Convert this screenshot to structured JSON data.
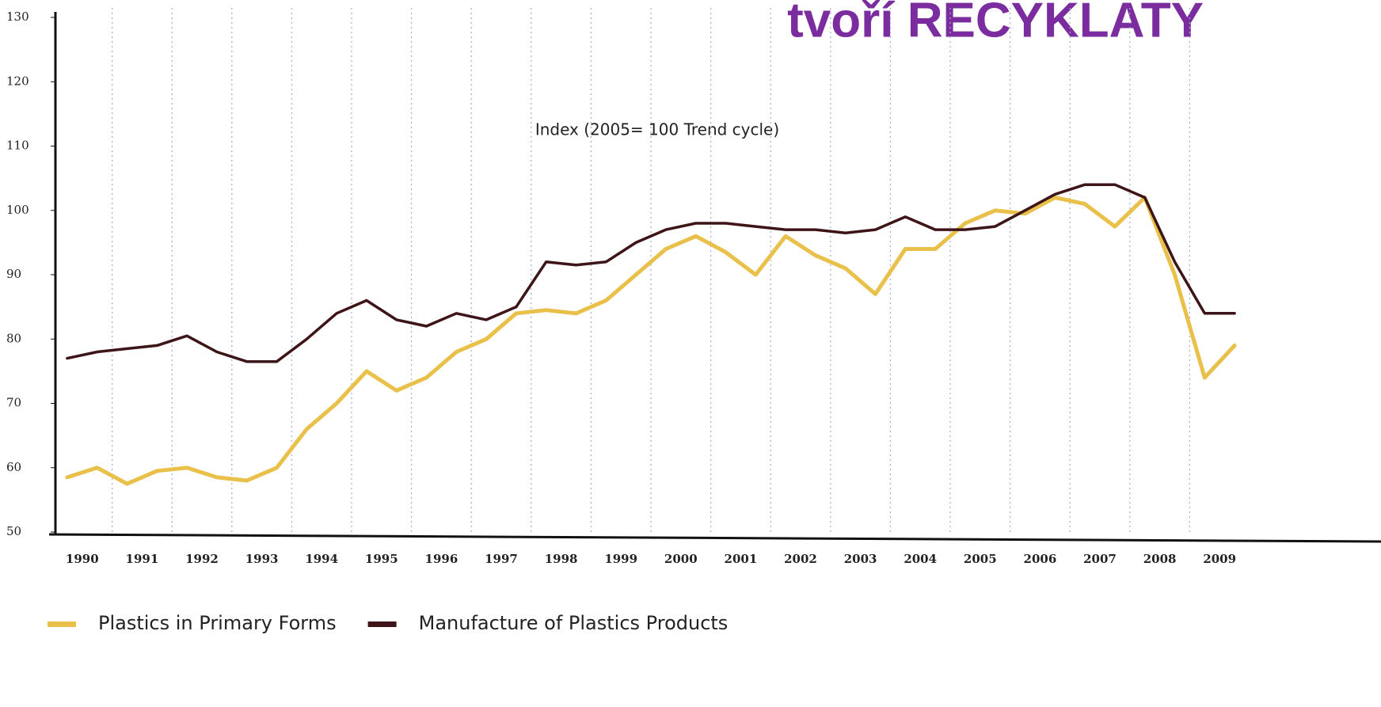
{
  "chart_data": {
    "type": "line",
    "title": "tvoří RECYKLATY",
    "annotation": "Index (2005= 100 Trend cycle)",
    "categories": [
      "1990",
      null,
      "1991",
      null,
      "1992",
      null,
      "1993",
      null,
      "1994",
      null,
      "1995",
      null,
      "1996",
      null,
      "1997",
      null,
      "1998",
      null,
      "1999",
      null,
      "2000",
      null,
      "2001",
      null,
      "2002",
      null,
      "2003",
      null,
      "2004",
      null,
      "2005",
      null,
      "2006",
      null,
      "2007",
      null,
      "2008",
      null,
      "2009",
      null
    ],
    "series": [
      {
        "name": "Plastics in Primary Forms",
        "color": "#e8c04a",
        "values": [
          58.5,
          60,
          57.5,
          59.5,
          60,
          58.5,
          58,
          60,
          66,
          70,
          75,
          72,
          74,
          78,
          80,
          84,
          84.5,
          84,
          86,
          90,
          94,
          96,
          93.5,
          90,
          96,
          93,
          91,
          87,
          94,
          94,
          98,
          100,
          99.5,
          102,
          101,
          97.5,
          102,
          90,
          74,
          79
        ]
      },
      {
        "name": "Manufacture of Plastics Products",
        "color": "#3d1518",
        "values": [
          77,
          78,
          78.5,
          79,
          80.5,
          78,
          76.5,
          76.5,
          80,
          84,
          86,
          83,
          82,
          84,
          83,
          85,
          92,
          91.5,
          92,
          95,
          97,
          98,
          98,
          97.5,
          97,
          97,
          96.5,
          97,
          99,
          97,
          97,
          97.5,
          100,
          102.5,
          104,
          104,
          102,
          92,
          84,
          84
        ]
      }
    ],
    "ylim": [
      50,
      130
    ],
    "yticks": [
      50,
      60,
      70,
      80,
      90,
      100,
      110,
      120,
      130
    ],
    "legend": "bottom"
  }
}
